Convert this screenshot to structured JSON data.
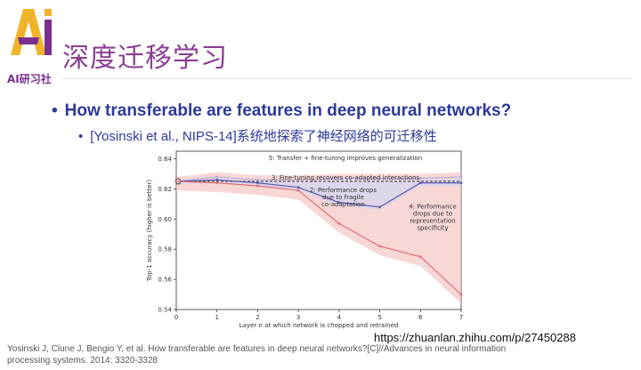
{
  "logo": {
    "text": "AI研习社",
    "color": "#7a2f8f"
  },
  "title": "深度迁移学习",
  "bullets": {
    "main": "How transferable are features in deep neural networks?",
    "sub": "[Yosinski et al., NIPS-14]系统地探索了神经网络的可迁移性"
  },
  "chart_data": {
    "type": "line",
    "xlabel": "Layer n at which network is chopped and retrained",
    "ylabel": "Top-1 accuracy (higher is better)",
    "x": [
      0,
      1,
      2,
      3,
      4,
      5,
      6,
      7
    ],
    "x_ticks": [
      "0",
      "1",
      "2",
      "3",
      "4",
      "5",
      "6",
      "7"
    ],
    "y_ticks": [
      "0.54",
      "0.56",
      "0.58",
      "0.60",
      "0.62",
      "0.64"
    ],
    "ylim": [
      0.54,
      0.645
    ],
    "baseline": 0.625,
    "series": [
      {
        "values": [
          0.625,
          0.628,
          0.626,
          0.626,
          0.627,
          0.627,
          0.627,
          0.628
        ],
        "color": "#b0b0d8",
        "band": [
          0.624,
          0.631
        ]
      },
      {
        "values": [
          0.625,
          0.626,
          0.624,
          0.621,
          0.611,
          0.608,
          0.624,
          0.624
        ],
        "color": "#5a5aa8",
        "band": [
          0.622,
          0.626
        ]
      },
      {
        "values": [
          0.625,
          0.624,
          0.622,
          0.619,
          0.597,
          0.582,
          0.575,
          0.55
        ],
        "color": "#e07070",
        "band": [
          0.62,
          0.626
        ]
      }
    ],
    "annotations": [
      "5: Transfer + fine-tuning improves generalization",
      "3: Fine-tuning recovers co-adapted interactions",
      "2: Performance drops due to fragile co-adaptation",
      "4: Performance drops due to representation specificity"
    ],
    "grid": false
  },
  "url": "https://zhuanlan.zhihu.com/p/27450288",
  "citation": "Yosinski J, Clune J, Bengio Y, et al. How transferable are features in deep neural networks?[C]//Advances in neural information processing systems. 2014: 3320-3328"
}
